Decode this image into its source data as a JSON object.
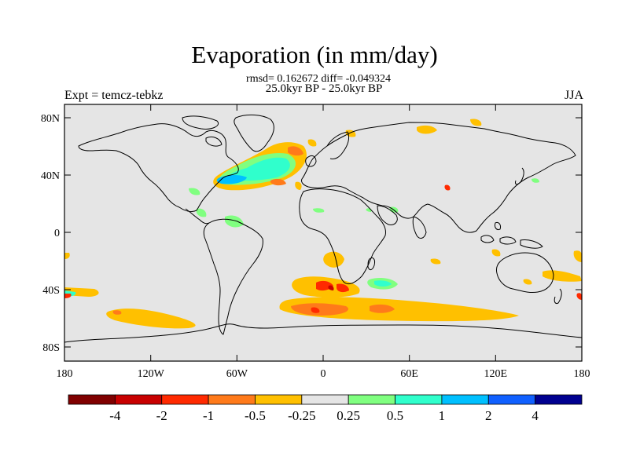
{
  "title": "Evaporation (in mm/day)",
  "stats_line": "rmsd= 0.162672 diff= -0.049324",
  "period_line": "25.0kyr BP - 25.0kyr BP",
  "left_label": "Expt = temcz-tebkz",
  "right_label": "JJA",
  "lat_labels": [
    "80N",
    "40N",
    "0",
    "40S",
    "80S"
  ],
  "lon_labels": [
    "180",
    "120W",
    "60W",
    "0",
    "60E",
    "120E",
    "180"
  ],
  "colorbar": {
    "colors": [
      "#800000",
      "#c80000",
      "#ff2a00",
      "#ff7a1a",
      "#ffc000",
      "#e5e5e5",
      "#80ff80",
      "#30ffcc",
      "#00c0ff",
      "#1060ff",
      "#000090"
    ],
    "labels": [
      "-4",
      "-2",
      "-1",
      "-0.5",
      "-0.25",
      "0.25",
      "0.5",
      "1",
      "2",
      "4"
    ]
  },
  "colors": {
    "background": "#e5e5e5",
    "coast": "#000000"
  }
}
